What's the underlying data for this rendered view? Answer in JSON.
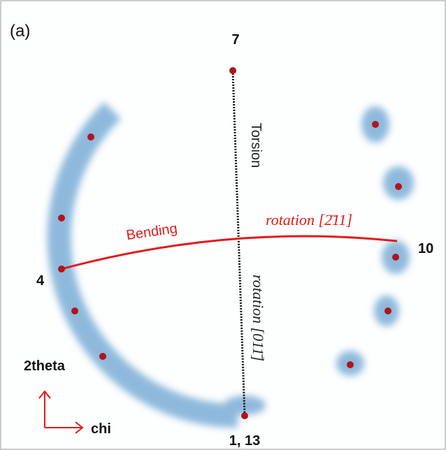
{
  "figure": {
    "panel_label": "(a)",
    "top_label": "7",
    "torsion_label": "Torsion",
    "bending_label": "Bending",
    "rotation_horizontal": "rotation [2̄11]",
    "rotation_vertical": "rotation [011̄]",
    "right_label": "10",
    "left_label": "4",
    "bottom_label": "1, 13",
    "y_axis_label": "2theta",
    "x_axis_label": "chi"
  }
}
